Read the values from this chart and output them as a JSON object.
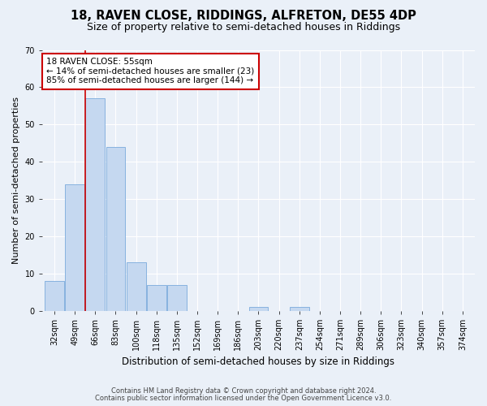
{
  "title": "18, RAVEN CLOSE, RIDDINGS, ALFRETON, DE55 4DP",
  "subtitle": "Size of property relative to semi-detached houses in Riddings",
  "xlabel": "Distribution of semi-detached houses by size in Riddings",
  "ylabel": "Number of semi-detached properties",
  "categories": [
    "32sqm",
    "49sqm",
    "66sqm",
    "83sqm",
    "100sqm",
    "118sqm",
    "135sqm",
    "152sqm",
    "169sqm",
    "186sqm",
    "203sqm",
    "220sqm",
    "237sqm",
    "254sqm",
    "271sqm",
    "289sqm",
    "306sqm",
    "323sqm",
    "340sqm",
    "357sqm",
    "374sqm"
  ],
  "values": [
    8,
    34,
    57,
    44,
    13,
    7,
    7,
    0,
    0,
    0,
    1,
    0,
    1,
    0,
    0,
    0,
    0,
    0,
    0,
    0,
    0
  ],
  "bar_color": "#c5d8f0",
  "bar_edge_color": "#7aaadc",
  "property_line_x": 1.5,
  "annotation_text": "18 RAVEN CLOSE: 55sqm\n← 14% of semi-detached houses are smaller (23)\n85% of semi-detached houses are larger (144) →",
  "annotation_box_color": "#ffffff",
  "annotation_box_edge": "#cc0000",
  "red_line_color": "#cc0000",
  "ylim": [
    0,
    70
  ],
  "yticks": [
    0,
    10,
    20,
    30,
    40,
    50,
    60,
    70
  ],
  "footer_line1": "Contains HM Land Registry data © Crown copyright and database right 2024.",
  "footer_line2": "Contains public sector information licensed under the Open Government Licence v3.0.",
  "background_color": "#eaf0f8",
  "plot_background": "#eaf0f8",
  "title_fontsize": 10.5,
  "subtitle_fontsize": 9,
  "tick_fontsize": 7,
  "ylabel_fontsize": 8,
  "xlabel_fontsize": 8.5,
  "annotation_fontsize": 7.5,
  "footer_fontsize": 6
}
